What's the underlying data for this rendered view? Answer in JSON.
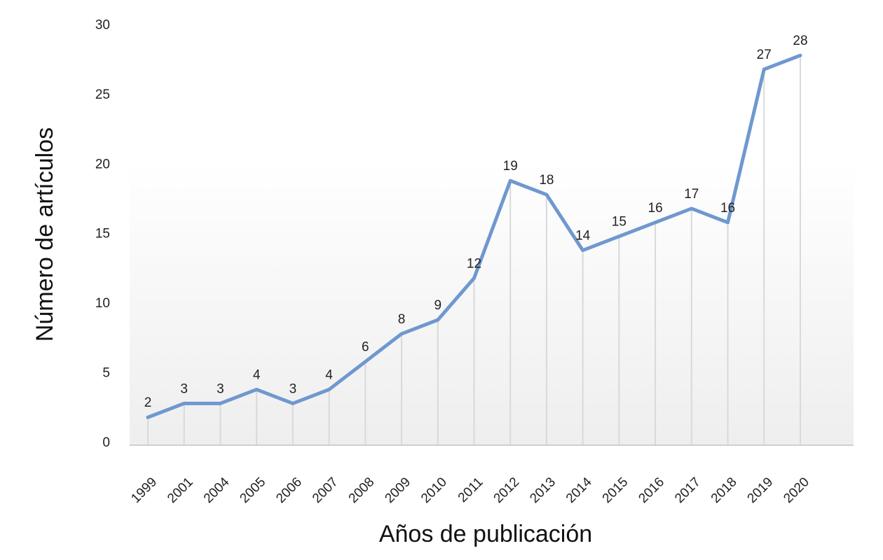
{
  "chart_data": {
    "type": "line",
    "x_label": "Años de publicación",
    "y_label": "Número de artículos",
    "categories": [
      "1999",
      "2001",
      "2004",
      "2005",
      "2006",
      "2007",
      "2008",
      "2009",
      "2010",
      "2011",
      "2012",
      "2013",
      "2014",
      "2015",
      "2016",
      "2017",
      "2018",
      "2019",
      "2020"
    ],
    "values": [
      2,
      3,
      3,
      4,
      3,
      4,
      6,
      8,
      9,
      12,
      19,
      18,
      14,
      15,
      16,
      17,
      16,
      27,
      28
    ],
    "color": "#6f98cf",
    "ylim": [
      0,
      30
    ],
    "yticks": [
      0,
      5,
      10,
      15,
      20,
      25,
      30
    ],
    "drop_lines": true
  }
}
